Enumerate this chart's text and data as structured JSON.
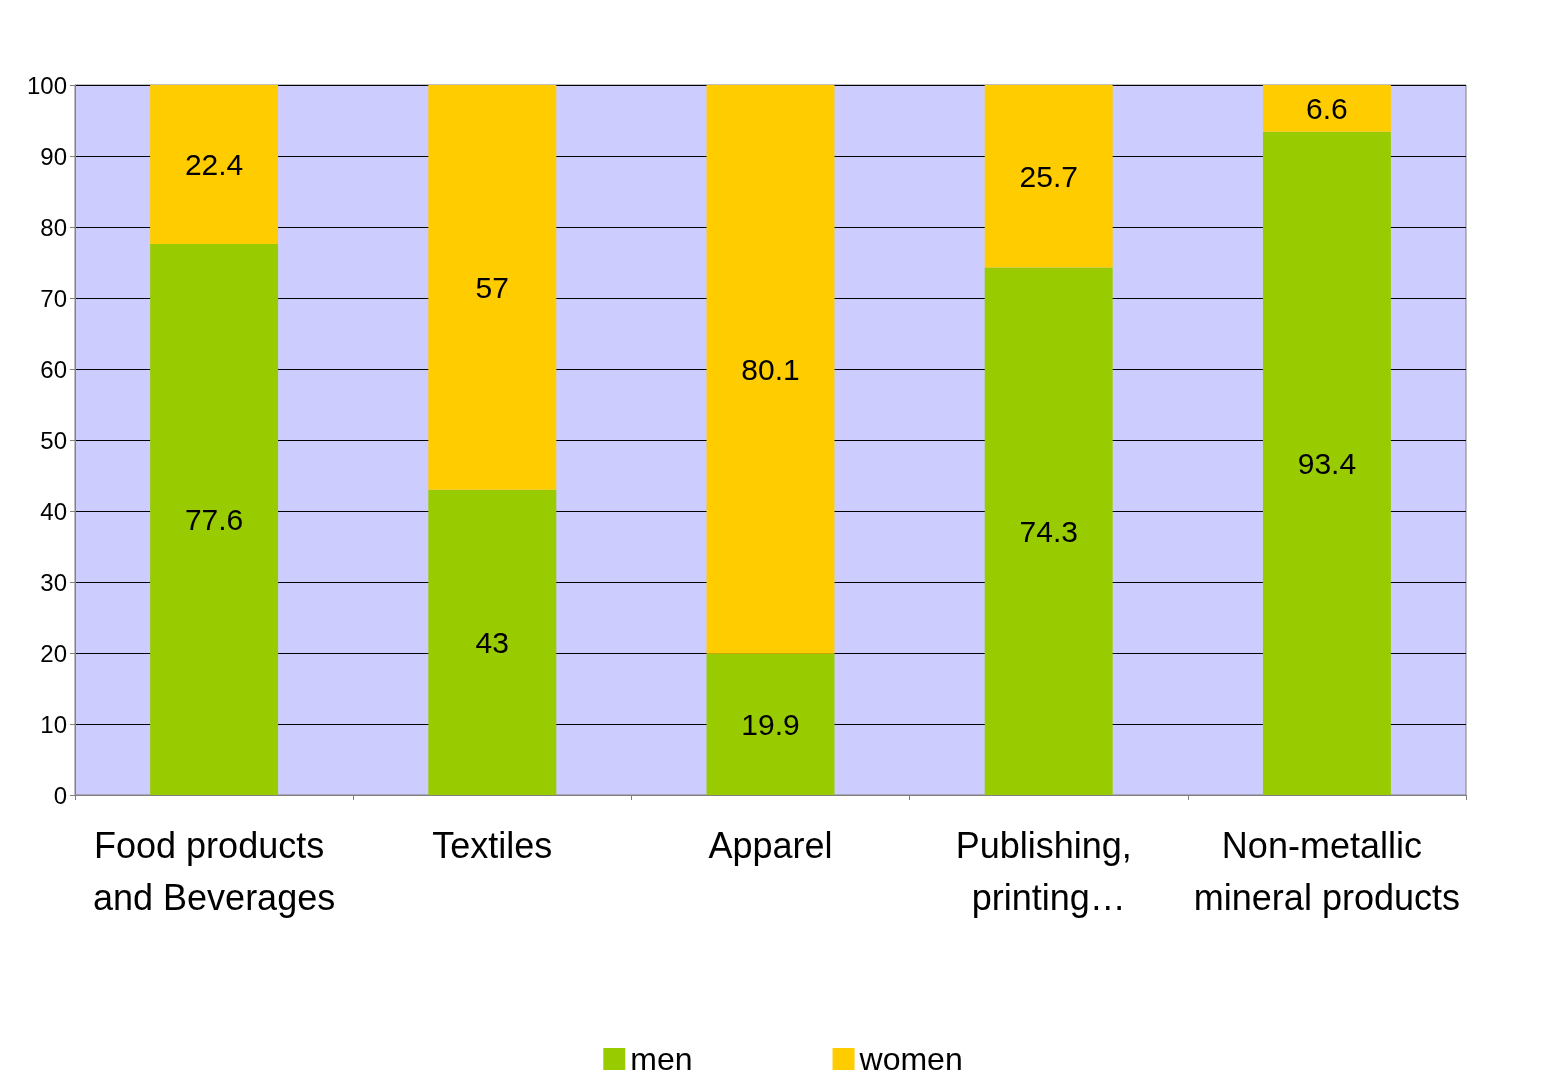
{
  "chart_data": {
    "type": "bar",
    "stacked": true,
    "categories": [
      "Food products and Beverages",
      "Textiles",
      "Apparel",
      "Publishing, printing…",
      "Non-metallic mineral products"
    ],
    "series": [
      {
        "name": "men",
        "color": "#99cc00",
        "values": [
          77.6,
          43,
          19.9,
          74.3,
          93.4
        ]
      },
      {
        "name": "women",
        "color": "#ffcc00",
        "values": [
          22.4,
          57,
          80.1,
          25.7,
          6.6
        ]
      }
    ],
    "ylim": [
      0,
      100
    ],
    "yticks": [
      0,
      10,
      20,
      30,
      40,
      50,
      60,
      70,
      80,
      90,
      100
    ],
    "grid": "y",
    "legend": "bottom",
    "data_labels": true
  }
}
